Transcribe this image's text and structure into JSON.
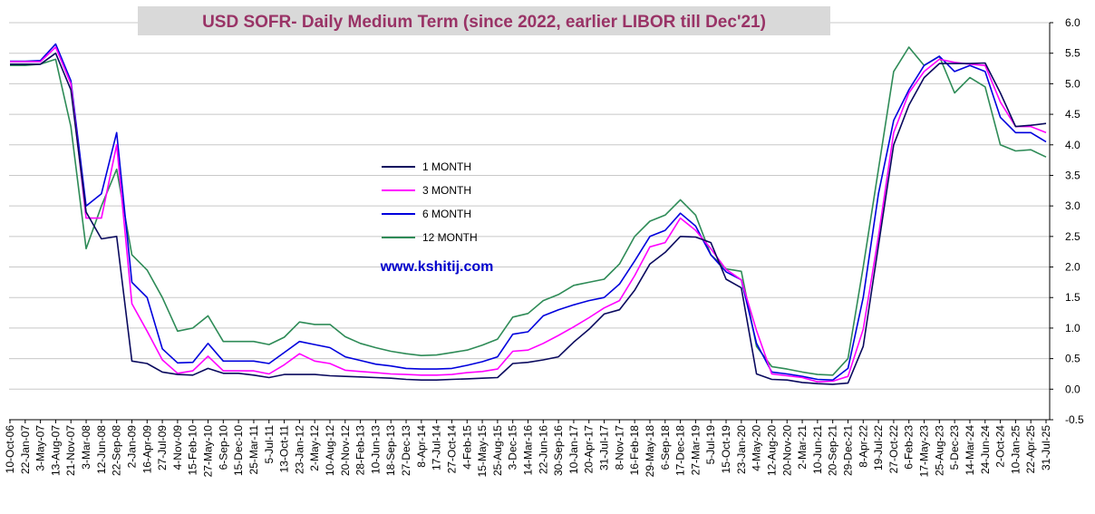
{
  "chart_data": {
    "type": "line",
    "title": "USD SOFR- Daily Medium Term (since 2022, earlier LIBOR till Dec'21)",
    "annotation": "www.kshitij.com",
    "ylim": [
      -0.5,
      6.0
    ],
    "ytick_labels": [
      "6.0",
      "5.5",
      "5.0",
      "4.5",
      "4.0",
      "3.5",
      "3.0",
      "2.5",
      "2.0",
      "1.5",
      "1.0",
      "0.5",
      "0.0",
      "-0.5"
    ],
    "ytick_values": [
      6.0,
      5.5,
      5.0,
      4.5,
      4.0,
      3.5,
      3.0,
      2.5,
      2.0,
      1.5,
      1.0,
      0.5,
      0.0,
      -0.5
    ],
    "x": [
      "10-Oct-06",
      "22-Jan-07",
      "3-May-07",
      "13-Aug-07",
      "21-Nov-07",
      "3-Mar-08",
      "12-Jun-08",
      "22-Sep-08",
      "2-Jan-09",
      "16-Apr-09",
      "27-Jul-09",
      "4-Nov-09",
      "15-Feb-10",
      "27-May-10",
      "6-Sep-10",
      "15-Dec-10",
      "25-Mar-11",
      "5-Jul-11",
      "13-Oct-11",
      "23-Jan-12",
      "2-May-12",
      "10-Aug-12",
      "20-Nov-12",
      "28-Feb-13",
      "10-Jun-13",
      "18-Sep-13",
      "27-Dec-13",
      "8-Apr-14",
      "17-Jul-14",
      "27-Oct-14",
      "4-Feb-15",
      "15-May-15",
      "25-Aug-15",
      "3-Dec-15",
      "14-Mar-16",
      "22-Jun-16",
      "30-Sep-16",
      "10-Jan-17",
      "20-Apr-17",
      "31-Jul-17",
      "8-Nov-17",
      "16-Feb-18",
      "29-May-18",
      "6-Sep-18",
      "17-Dec-18",
      "27-Mar-19",
      "5-Jul-19",
      "15-Oct-19",
      "23-Jan-20",
      "4-May-20",
      "12-Aug-20",
      "20-Nov-20",
      "2-Mar-21",
      "10-Jun-21",
      "20-Sep-21",
      "29-Dec-21",
      "8-Apr-22",
      "19-Jul-22",
      "27-Oct-22",
      "6-Feb-23",
      "17-May-23",
      "25-Aug-23",
      "5-Dec-23",
      "14-Mar-24",
      "24-Jun-24",
      "2-Oct-24",
      "10-Jan-25",
      "22-Apr-25",
      "31-Jul-25"
    ],
    "series": [
      {
        "name": "1 MONTH",
        "color": "#0a0a5e",
        "values": [
          5.32,
          5.32,
          5.32,
          5.5,
          4.9,
          2.9,
          2.46,
          2.5,
          0.46,
          0.42,
          0.28,
          0.24,
          0.23,
          0.34,
          0.26,
          0.26,
          0.23,
          0.19,
          0.24,
          0.24,
          0.24,
          0.22,
          0.21,
          0.2,
          0.19,
          0.18,
          0.16,
          0.15,
          0.15,
          0.16,
          0.17,
          0.18,
          0.19,
          0.42,
          0.44,
          0.48,
          0.53,
          0.77,
          0.98,
          1.23,
          1.3,
          1.62,
          2.05,
          2.24,
          2.5,
          2.49,
          2.4,
          1.8,
          1.66,
          0.25,
          0.16,
          0.15,
          0.11,
          0.09,
          0.08,
          0.1,
          0.7,
          2.35,
          4.0,
          4.65,
          5.1,
          5.33,
          5.33,
          5.33,
          5.34,
          4.85,
          4.3,
          4.32,
          4.35
        ]
      },
      {
        "name": "3 MONTH",
        "color": "#ff00ff",
        "values": [
          5.36,
          5.36,
          5.36,
          5.6,
          5.0,
          2.8,
          2.8,
          4.0,
          1.4,
          0.95,
          0.48,
          0.26,
          0.3,
          0.54,
          0.3,
          0.3,
          0.3,
          0.25,
          0.4,
          0.58,
          0.46,
          0.42,
          0.31,
          0.29,
          0.27,
          0.25,
          0.24,
          0.23,
          0.23,
          0.24,
          0.27,
          0.29,
          0.33,
          0.62,
          0.64,
          0.75,
          0.88,
          1.02,
          1.17,
          1.33,
          1.45,
          1.86,
          2.33,
          2.4,
          2.8,
          2.6,
          2.3,
          1.96,
          1.79,
          0.96,
          0.25,
          0.22,
          0.19,
          0.12,
          0.13,
          0.21,
          0.98,
          2.5,
          4.2,
          4.85,
          5.2,
          5.4,
          5.35,
          5.32,
          5.3,
          4.7,
          4.3,
          4.3,
          4.2
        ]
      },
      {
        "name": "6 MONTH",
        "color": "#0000dd",
        "values": [
          5.37,
          5.37,
          5.38,
          5.65,
          5.05,
          3.0,
          3.2,
          4.2,
          1.75,
          1.5,
          0.66,
          0.43,
          0.44,
          0.75,
          0.46,
          0.46,
          0.46,
          0.42,
          0.6,
          0.78,
          0.73,
          0.68,
          0.53,
          0.47,
          0.41,
          0.38,
          0.34,
          0.33,
          0.33,
          0.34,
          0.39,
          0.45,
          0.53,
          0.9,
          0.94,
          1.2,
          1.3,
          1.38,
          1.45,
          1.5,
          1.72,
          2.1,
          2.5,
          2.6,
          2.88,
          2.67,
          2.2,
          1.92,
          1.79,
          0.75,
          0.28,
          0.25,
          0.21,
          0.16,
          0.15,
          0.34,
          1.5,
          3.2,
          4.4,
          4.9,
          5.3,
          5.45,
          5.2,
          5.3,
          5.2,
          4.45,
          4.2,
          4.2,
          4.05
        ]
      },
      {
        "name": "12 MONTH",
        "color": "#2e8b57",
        "values": [
          5.3,
          5.3,
          5.32,
          5.4,
          4.3,
          2.3,
          3.0,
          3.6,
          2.2,
          1.95,
          1.5,
          0.95,
          1.0,
          1.2,
          0.78,
          0.78,
          0.78,
          0.73,
          0.85,
          1.1,
          1.06,
          1.06,
          0.86,
          0.75,
          0.68,
          0.62,
          0.58,
          0.55,
          0.56,
          0.6,
          0.64,
          0.72,
          0.82,
          1.18,
          1.24,
          1.45,
          1.55,
          1.7,
          1.75,
          1.8,
          2.05,
          2.5,
          2.75,
          2.85,
          3.1,
          2.85,
          2.2,
          1.97,
          1.93,
          0.7,
          0.37,
          0.33,
          0.28,
          0.24,
          0.23,
          0.5,
          2.0,
          3.6,
          5.2,
          5.6,
          5.3,
          5.45,
          4.85,
          5.1,
          4.95,
          4.0,
          3.9,
          3.92,
          3.8
        ]
      }
    ]
  }
}
